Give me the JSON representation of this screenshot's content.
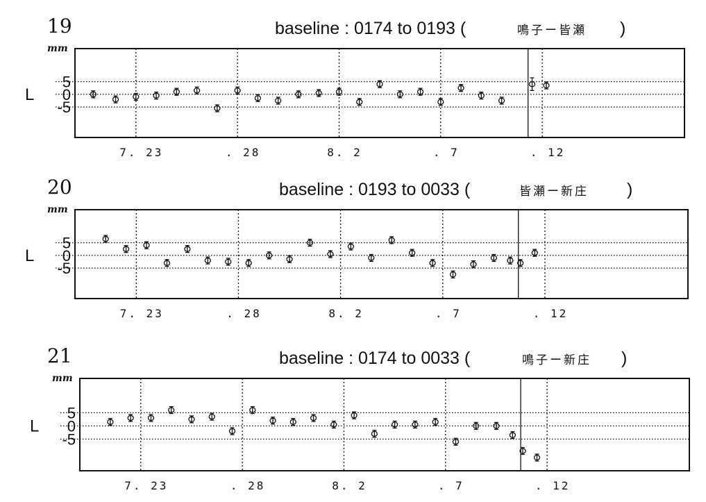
{
  "chart_data": [
    {
      "type": "scatter",
      "panel_number": "19",
      "title": "baseline : 0174 to 0193 (",
      "station": "鳴子ー皆瀬",
      "title_close": ")",
      "unit": "mm",
      "ylabel": "L",
      "yticks": [
        "5",
        "0",
        "-5"
      ],
      "ytick_values": [
        5,
        0,
        -5
      ],
      "ylim": [
        -17,
        18
      ],
      "xlim": [
        0,
        30
      ],
      "xticks": [
        {
          "label": "7. 23",
          "x": 3
        },
        {
          "label": ". 28",
          "x": 8
        },
        {
          "label": "8. 2",
          "x": 13
        },
        {
          "label": ". 7",
          "x": 18
        },
        {
          "label": ". 12",
          "x": 23
        }
      ],
      "vlines": [
        3,
        8,
        13,
        18,
        23
      ],
      "divider_x": 22.3,
      "points": [
        {
          "x": 0.9,
          "y": 0
        },
        {
          "x": 2.0,
          "y": -2
        },
        {
          "x": 3.0,
          "y": -1
        },
        {
          "x": 4.0,
          "y": -0.5
        },
        {
          "x": 5.0,
          "y": 1
        },
        {
          "x": 6.0,
          "y": 1.5
        },
        {
          "x": 7.0,
          "y": -5.5
        },
        {
          "x": 8.0,
          "y": 1.5
        },
        {
          "x": 9.0,
          "y": -1.5
        },
        {
          "x": 10.0,
          "y": -2.5
        },
        {
          "x": 11.0,
          "y": 0
        },
        {
          "x": 12.0,
          "y": 0.5
        },
        {
          "x": 13.0,
          "y": 1
        },
        {
          "x": 14.0,
          "y": -3
        },
        {
          "x": 15.0,
          "y": 4
        },
        {
          "x": 16.0,
          "y": 0
        },
        {
          "x": 17.0,
          "y": 1
        },
        {
          "x": 18.0,
          "y": -3
        },
        {
          "x": 19.0,
          "y": 2.5
        },
        {
          "x": 20.0,
          "y": -0.5
        },
        {
          "x": 21.0,
          "y": -2.5
        },
        {
          "x": 22.5,
          "y": 4,
          "err": 2.5
        },
        {
          "x": 23.2,
          "y": 3.5
        }
      ]
    },
    {
      "type": "scatter",
      "panel_number": "20",
      "title": "baseline : 0193 to 0033 (",
      "station": "皆瀬ー新庄",
      "title_close": ")",
      "unit": "mm",
      "ylabel": "L",
      "yticks": [
        "5",
        "0",
        "-5"
      ],
      "ytick_values": [
        5,
        0,
        -5
      ],
      "ylim": [
        -17,
        18
      ],
      "xlim": [
        0,
        30
      ],
      "xticks": [
        {
          "label": "7. 23",
          "x": 3
        },
        {
          "label": ". 28",
          "x": 8
        },
        {
          "label": "8. 2",
          "x": 13
        },
        {
          "label": ". 7",
          "x": 18
        },
        {
          "label": ". 12",
          "x": 23
        }
      ],
      "vlines": [
        3,
        8,
        13,
        18,
        23
      ],
      "divider_x": 21.7,
      "points": [
        {
          "x": 1.5,
          "y": 6.5
        },
        {
          "x": 2.5,
          "y": 2.5
        },
        {
          "x": 3.5,
          "y": 4
        },
        {
          "x": 4.5,
          "y": -3
        },
        {
          "x": 5.5,
          "y": 2.5
        },
        {
          "x": 6.5,
          "y": -2
        },
        {
          "x": 7.5,
          "y": -2.5
        },
        {
          "x": 8.5,
          "y": -3
        },
        {
          "x": 9.5,
          "y": 0
        },
        {
          "x": 10.5,
          "y": -1.5
        },
        {
          "x": 11.5,
          "y": 5
        },
        {
          "x": 12.5,
          "y": 0.5
        },
        {
          "x": 13.5,
          "y": 3.5
        },
        {
          "x": 14.5,
          "y": -1
        },
        {
          "x": 15.5,
          "y": 6
        },
        {
          "x": 16.5,
          "y": 1
        },
        {
          "x": 17.5,
          "y": -3
        },
        {
          "x": 18.5,
          "y": -7.5
        },
        {
          "x": 19.5,
          "y": -3.5
        },
        {
          "x": 20.5,
          "y": -1
        },
        {
          "x": 21.3,
          "y": -2
        },
        {
          "x": 21.8,
          "y": -3
        },
        {
          "x": 22.5,
          "y": 1
        }
      ]
    },
    {
      "type": "scatter",
      "panel_number": "21",
      "title": "baseline : 0174 to 0033 (",
      "station": "鳴子ー新庄",
      "title_close": ")",
      "unit": "mm",
      "ylabel": "L",
      "yticks": [
        "5",
        "0",
        "-5"
      ],
      "ytick_values": [
        5,
        0,
        -5
      ],
      "ylim": [
        -17,
        18
      ],
      "xlim": [
        0,
        30
      ],
      "xticks": [
        {
          "label": "7. 23",
          "x": 3
        },
        {
          "label": ". 28",
          "x": 8
        },
        {
          "label": "8. 2",
          "x": 13
        },
        {
          "label": ". 7",
          "x": 18
        },
        {
          "label": ". 12",
          "x": 23
        }
      ],
      "vlines": [
        3,
        8,
        13,
        18,
        23
      ],
      "divider_x": 21.7,
      "points": [
        {
          "x": 1.5,
          "y": 1.5
        },
        {
          "x": 2.5,
          "y": 3
        },
        {
          "x": 3.5,
          "y": 3
        },
        {
          "x": 4.5,
          "y": 6
        },
        {
          "x": 5.5,
          "y": 2.5
        },
        {
          "x": 6.5,
          "y": 3.5
        },
        {
          "x": 7.5,
          "y": -2
        },
        {
          "x": 8.5,
          "y": 6
        },
        {
          "x": 9.5,
          "y": 2
        },
        {
          "x": 10.5,
          "y": 1.5
        },
        {
          "x": 11.5,
          "y": 3
        },
        {
          "x": 12.5,
          "y": 0.5
        },
        {
          "x": 13.5,
          "y": 4
        },
        {
          "x": 14.5,
          "y": -3
        },
        {
          "x": 15.5,
          "y": 0.5
        },
        {
          "x": 16.5,
          "y": 0.5
        },
        {
          "x": 17.5,
          "y": 1.5
        },
        {
          "x": 18.5,
          "y": -6
        },
        {
          "x": 19.5,
          "y": 0
        },
        {
          "x": 20.5,
          "y": 0
        },
        {
          "x": 21.3,
          "y": -3.5
        },
        {
          "x": 21.8,
          "y": -9.5
        },
        {
          "x": 22.5,
          "y": -12
        }
      ]
    }
  ]
}
